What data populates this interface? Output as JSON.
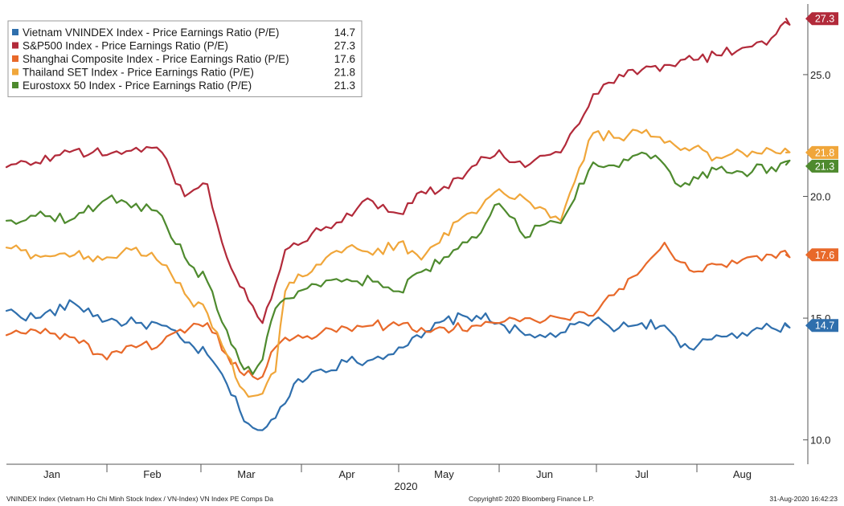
{
  "chart_data": {
    "type": "line",
    "x_unit": "date (2020)",
    "xlim": [
      "2020-01-01",
      "2020-08-31"
    ],
    "ylim": [
      9.0,
      27.9
    ],
    "y_ticks": [
      10.0,
      15.0,
      20.0,
      25.0
    ],
    "y_tick_labels": [
      "10.0",
      "15.0",
      "20.0",
      "25.0"
    ],
    "x_ticks": [
      {
        "date": "2020-01-15",
        "label": "Jan"
      },
      {
        "date": "2020-02-15",
        "label": "Feb"
      },
      {
        "date": "2020-03-15",
        "label": "Mar"
      },
      {
        "date": "2020-04-15",
        "label": "Apr"
      },
      {
        "date": "2020-05-15",
        "label": "May"
      },
      {
        "date": "2020-06-15",
        "label": "Jun"
      },
      {
        "date": "2020-07-15",
        "label": "Jul"
      },
      {
        "date": "2020-08-15",
        "label": "Aug"
      }
    ],
    "x_axis_label": "2020",
    "legend_position": "top-left",
    "series": [
      {
        "name": "Vietnam VNINDEX Index - Price Earnings Ratio (P/E)",
        "last": "14.7",
        "color": "#2f6fad",
        "dates": [
          "2020-01-01",
          "2020-01-10",
          "2020-01-22",
          "2020-02-01",
          "2020-02-10",
          "2020-02-18",
          "2020-02-25",
          "2020-03-03",
          "2020-03-09",
          "2020-03-13",
          "2020-03-17",
          "2020-03-20",
          "2020-03-24",
          "2020-03-27",
          "2020-03-31",
          "2020-04-07",
          "2020-04-15",
          "2020-04-23",
          "2020-05-01",
          "2020-05-08",
          "2020-05-15",
          "2020-05-25",
          "2020-06-01",
          "2020-06-09",
          "2020-06-12",
          "2020-06-20",
          "2020-06-30",
          "2020-07-08",
          "2020-07-15",
          "2020-07-22",
          "2020-07-27",
          "2020-07-31",
          "2020-08-07",
          "2020-08-15",
          "2020-08-24",
          "2020-08-31"
        ],
        "values": [
          15.3,
          15.0,
          15.6,
          14.9,
          14.8,
          14.7,
          14.0,
          13.5,
          12.3,
          11.2,
          10.5,
          10.4,
          10.9,
          11.5,
          12.5,
          12.9,
          13.2,
          13.3,
          13.8,
          14.2,
          14.9,
          15.1,
          14.8,
          14.3,
          14.2,
          14.4,
          14.9,
          14.6,
          14.8,
          14.7,
          13.8,
          13.7,
          14.3,
          14.4,
          14.6,
          14.7
        ]
      },
      {
        "name": "S&P500 Index - Price Earnings Ratio (P/E)",
        "last": "27.3",
        "color": "#b22a3a",
        "dates": [
          "2020-01-01",
          "2020-01-10",
          "2020-01-22",
          "2020-02-01",
          "2020-02-10",
          "2020-02-18",
          "2020-02-25",
          "2020-03-03",
          "2020-03-09",
          "2020-03-13",
          "2020-03-17",
          "2020-03-20",
          "2020-03-24",
          "2020-03-27",
          "2020-03-31",
          "2020-04-07",
          "2020-04-15",
          "2020-04-23",
          "2020-05-01",
          "2020-05-08",
          "2020-05-15",
          "2020-05-25",
          "2020-06-01",
          "2020-06-09",
          "2020-06-12",
          "2020-06-20",
          "2020-06-30",
          "2020-07-08",
          "2020-07-15",
          "2020-07-22",
          "2020-07-27",
          "2020-07-31",
          "2020-08-07",
          "2020-08-15",
          "2020-08-24",
          "2020-08-31"
        ],
        "values": [
          21.2,
          21.4,
          21.9,
          21.7,
          22.0,
          21.8,
          20.0,
          20.5,
          17.5,
          16.3,
          15.5,
          14.8,
          16.4,
          17.8,
          18.0,
          18.6,
          19.3,
          19.8,
          19.3,
          20.2,
          20.4,
          21.3,
          21.9,
          21.2,
          21.5,
          21.8,
          24.2,
          25.0,
          25.2,
          25.4,
          25.6,
          25.6,
          25.8,
          26.1,
          26.5,
          27.3
        ]
      },
      {
        "name": "Shanghai Composite Index - Price Earnings Ratio (P/E)",
        "last": "17.6",
        "color": "#e8692a",
        "dates": [
          "2020-01-01",
          "2020-01-10",
          "2020-01-22",
          "2020-02-01",
          "2020-02-10",
          "2020-02-18",
          "2020-02-25",
          "2020-03-03",
          "2020-03-09",
          "2020-03-13",
          "2020-03-17",
          "2020-03-20",
          "2020-03-24",
          "2020-03-27",
          "2020-03-31",
          "2020-04-07",
          "2020-04-15",
          "2020-04-23",
          "2020-05-01",
          "2020-05-08",
          "2020-05-15",
          "2020-05-25",
          "2020-06-01",
          "2020-06-09",
          "2020-06-12",
          "2020-06-20",
          "2020-06-30",
          "2020-07-08",
          "2020-07-15",
          "2020-07-22",
          "2020-07-27",
          "2020-07-31",
          "2020-08-07",
          "2020-08-15",
          "2020-08-24",
          "2020-08-31"
        ],
        "values": [
          14.3,
          14.5,
          14.2,
          13.3,
          13.8,
          14.0,
          14.4,
          14.8,
          13.5,
          12.8,
          12.6,
          12.6,
          13.8,
          14.2,
          14.3,
          14.4,
          14.6,
          14.7,
          14.7,
          14.6,
          14.6,
          14.7,
          14.8,
          15.0,
          14.9,
          15.0,
          15.1,
          16.2,
          17.0,
          18.1,
          17.3,
          16.9,
          17.2,
          17.4,
          17.6,
          17.6
        ]
      },
      {
        "name": "Thailand SET Index - Price Earnings Ratio (P/E)",
        "last": "21.8",
        "color": "#f0a63a",
        "dates": [
          "2020-01-01",
          "2020-01-10",
          "2020-01-22",
          "2020-02-01",
          "2020-02-10",
          "2020-02-18",
          "2020-02-25",
          "2020-03-03",
          "2020-03-09",
          "2020-03-13",
          "2020-03-17",
          "2020-03-20",
          "2020-03-24",
          "2020-03-27",
          "2020-03-31",
          "2020-04-07",
          "2020-04-15",
          "2020-04-23",
          "2020-05-01",
          "2020-05-08",
          "2020-05-15",
          "2020-05-25",
          "2020-06-01",
          "2020-06-09",
          "2020-06-12",
          "2020-06-20",
          "2020-06-30",
          "2020-07-08",
          "2020-07-15",
          "2020-07-22",
          "2020-07-27",
          "2020-07-31",
          "2020-08-07",
          "2020-08-15",
          "2020-08-24",
          "2020-08-31"
        ],
        "values": [
          17.9,
          17.6,
          17.6,
          17.5,
          17.9,
          17.2,
          16.0,
          15.2,
          13.5,
          12.2,
          11.8,
          11.9,
          12.8,
          16.1,
          16.8,
          17.2,
          17.9,
          17.6,
          18.1,
          17.4,
          18.5,
          19.3,
          20.3,
          19.9,
          19.5,
          19.0,
          22.6,
          22.4,
          22.6,
          22.2,
          21.9,
          22.0,
          21.6,
          21.8,
          21.9,
          21.8
        ]
      },
      {
        "name": "Eurostoxx 50 Index - Price Earnings Ratio (P/E)",
        "last": "21.3",
        "color": "#4e8a2e",
        "dates": [
          "2020-01-01",
          "2020-01-10",
          "2020-01-22",
          "2020-02-01",
          "2020-02-10",
          "2020-02-18",
          "2020-02-25",
          "2020-03-03",
          "2020-03-09",
          "2020-03-13",
          "2020-03-17",
          "2020-03-20",
          "2020-03-24",
          "2020-03-27",
          "2020-03-31",
          "2020-04-07",
          "2020-04-15",
          "2020-04-23",
          "2020-05-01",
          "2020-05-08",
          "2020-05-15",
          "2020-05-25",
          "2020-06-01",
          "2020-06-09",
          "2020-06-12",
          "2020-06-20",
          "2020-06-30",
          "2020-07-08",
          "2020-07-15",
          "2020-07-22",
          "2020-07-27",
          "2020-07-31",
          "2020-08-07",
          "2020-08-15",
          "2020-08-24",
          "2020-08-31"
        ],
        "values": [
          19.0,
          19.2,
          19.1,
          19.9,
          19.7,
          19.2,
          17.5,
          16.5,
          14.5,
          13.2,
          12.7,
          13.3,
          15.4,
          15.8,
          16.1,
          16.3,
          16.6,
          16.5,
          16.1,
          16.9,
          17.5,
          18.3,
          19.7,
          18.3,
          18.8,
          18.9,
          21.4,
          21.2,
          21.8,
          21.3,
          20.4,
          20.8,
          21.1,
          21.0,
          21.2,
          21.3
        ]
      }
    ]
  },
  "footer": {
    "left": "VNINDEX Index (Vietnam Ho Chi Minh Stock Index / VN-Index) VN Index PE Comps Da",
    "center": "Copyright© 2020 Bloomberg Finance L.P.",
    "right": "31-Aug-2020 16:42:23"
  }
}
